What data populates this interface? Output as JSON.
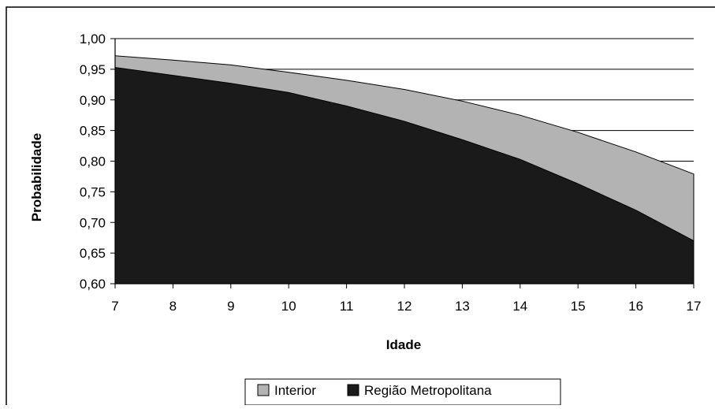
{
  "chart_data": {
    "type": "area",
    "title": "",
    "xlabel": "Idade",
    "ylabel": "Probabilidade",
    "x": [
      7,
      8,
      9,
      10,
      11,
      12,
      13,
      14,
      15,
      16,
      17
    ],
    "x_tick_labels": [
      "7",
      "8",
      "9",
      "10",
      "11",
      "12",
      "13",
      "14",
      "15",
      "16",
      "17"
    ],
    "ylim": [
      0.6,
      1.0
    ],
    "y_ticks": [
      0.6,
      0.65,
      0.7,
      0.75,
      0.8,
      0.85,
      0.9,
      0.95,
      1.0
    ],
    "y_tick_labels": [
      "0,60",
      "0,65",
      "0,70",
      "0,75",
      "0,80",
      "0,85",
      "0,90",
      "0,95",
      "1,00"
    ],
    "grid": true,
    "legend_position": "bottom",
    "series": [
      {
        "name": "Interior",
        "color": "#b3b3b3",
        "values": [
          0.972,
          0.965,
          0.957,
          0.945,
          0.932,
          0.917,
          0.898,
          0.875,
          0.847,
          0.815,
          0.779
        ]
      },
      {
        "name": "Região Metropolitana",
        "color": "#1a1a1a",
        "values": [
          0.953,
          0.94,
          0.927,
          0.912,
          0.89,
          0.865,
          0.835,
          0.803,
          0.763,
          0.72,
          0.67
        ]
      }
    ]
  }
}
